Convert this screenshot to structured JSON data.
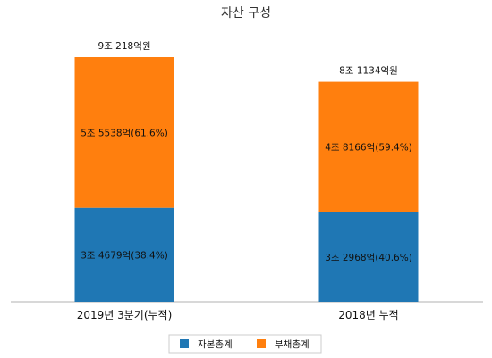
{
  "chart_data": {
    "type": "bar",
    "stacked": true,
    "title": "자산 구성",
    "categories": [
      "2019년 3분기(누적)",
      "2018년 누적"
    ],
    "series": [
      {
        "name": "자본총계",
        "color": "#1f77b4",
        "values": [
          34679,
          32968
        ],
        "labels": [
          "3조 4679억(38.4%)",
          "3조 2968억(40.6%)"
        ]
      },
      {
        "name": "부채총계",
        "color": "#ff7f0e",
        "values": [
          55538,
          48166
        ],
        "labels": [
          "5조 5538억(61.6%)",
          "4조 8166억(59.4%)"
        ]
      }
    ],
    "totals": [
      90218,
      81134
    ],
    "total_labels": [
      "9조 218억원",
      "8조 1134억원"
    ],
    "unit": "억원",
    "grid": false,
    "legend_position": "bottom"
  }
}
